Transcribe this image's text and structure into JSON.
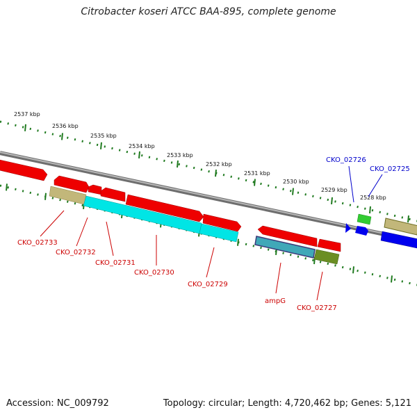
{
  "title": "Citrobacter koseri ATCC BAA-895, complete genome",
  "footer": {
    "accession": "Accession: NC_009792",
    "summary": "Topology: circular; Length: 4,720,462 bp; Genes: 5,121"
  },
  "colors": {
    "backbone": "#9a9a9a",
    "tick": "#1f7a1f",
    "gene_red": "#ee0000",
    "gene_cyan": "#00e5e5",
    "gene_blue": "#0000ee",
    "gene_green": "#33cc33",
    "gene_tan": "#c2b77a",
    "gene_olive": "#6b8e23",
    "label_red": "#cc0000",
    "label_blue": "#0000cc"
  },
  "kbp_labels": [
    "2537 kbp",
    "2536 kbp",
    "2535 kbp",
    "2534 kbp",
    "2533 kbp",
    "2532 kbp",
    "2531 kbp",
    "2530 kbp",
    "2529 kbp",
    "2528 kbp"
  ],
  "gene_labels": [
    {
      "text": "CKO_02733",
      "color": "red"
    },
    {
      "text": "CKO_02732",
      "color": "red"
    },
    {
      "text": "CKO_02731",
      "color": "red"
    },
    {
      "text": "CKO_02730",
      "color": "red"
    },
    {
      "text": "CKO_02729",
      "color": "red"
    },
    {
      "text": "ampG",
      "color": "red"
    },
    {
      "text": "CKO_02727",
      "color": "red"
    },
    {
      "text": "CKO_02726",
      "color": "blue"
    },
    {
      "text": "CKO_02725",
      "color": "blue"
    }
  ]
}
